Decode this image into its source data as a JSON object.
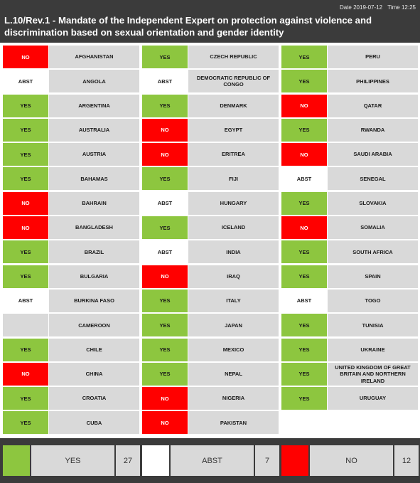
{
  "header": {
    "date_label": "Date 2019-07-12",
    "time_label": "Time 12:25",
    "title": "L.10/Rev.1 - Mandate of the Independent Expert on protection against violence and discrimination based on sexual orientation and gender identity"
  },
  "columns": [
    [
      {
        "vote": "NO",
        "country": "AFGHANISTAN"
      },
      {
        "vote": "ABST",
        "country": "ANGOLA"
      },
      {
        "vote": "YES",
        "country": "ARGENTINA"
      },
      {
        "vote": "YES",
        "country": "AUSTRALIA"
      },
      {
        "vote": "YES",
        "country": "AUSTRIA"
      },
      {
        "vote": "YES",
        "country": "BAHAMAS"
      },
      {
        "vote": "NO",
        "country": "BAHRAIN"
      },
      {
        "vote": "NO",
        "country": "BANGLADESH"
      },
      {
        "vote": "YES",
        "country": "BRAZIL"
      },
      {
        "vote": "YES",
        "country": "BULGARIA"
      },
      {
        "vote": "ABST",
        "country": "BURKINA FASO"
      },
      {
        "vote": "",
        "country": "CAMEROON"
      },
      {
        "vote": "YES",
        "country": "CHILE"
      },
      {
        "vote": "NO",
        "country": "CHINA"
      },
      {
        "vote": "YES",
        "country": "CROATIA"
      },
      {
        "vote": "YES",
        "country": "CUBA"
      }
    ],
    [
      {
        "vote": "YES",
        "country": "CZECH REPUBLIC"
      },
      {
        "vote": "ABST",
        "country": "DEMOCRATIC REPUBLIC OF CONGO"
      },
      {
        "vote": "YES",
        "country": "DENMARK"
      },
      {
        "vote": "NO",
        "country": "EGYPT"
      },
      {
        "vote": "NO",
        "country": "ERITREA"
      },
      {
        "vote": "YES",
        "country": "FIJI"
      },
      {
        "vote": "ABST",
        "country": "HUNGARY"
      },
      {
        "vote": "YES",
        "country": "ICELAND"
      },
      {
        "vote": "ABST",
        "country": "INDIA"
      },
      {
        "vote": "NO",
        "country": "IRAQ"
      },
      {
        "vote": "YES",
        "country": "ITALY"
      },
      {
        "vote": "YES",
        "country": "JAPAN"
      },
      {
        "vote": "YES",
        "country": "MEXICO"
      },
      {
        "vote": "YES",
        "country": "NEPAL"
      },
      {
        "vote": "NO",
        "country": "NIGERIA"
      },
      {
        "vote": "NO",
        "country": "PAKISTAN"
      }
    ],
    [
      {
        "vote": "YES",
        "country": "PERU"
      },
      {
        "vote": "YES",
        "country": "PHILIPPINES"
      },
      {
        "vote": "NO",
        "country": "QATAR"
      },
      {
        "vote": "YES",
        "country": "RWANDA"
      },
      {
        "vote": "NO",
        "country": "SAUDI ARABIA"
      },
      {
        "vote": "ABST",
        "country": "SENEGAL"
      },
      {
        "vote": "YES",
        "country": "SLOVAKIA"
      },
      {
        "vote": "NO",
        "country": "SOMALIA"
      },
      {
        "vote": "YES",
        "country": "SOUTH AFRICA"
      },
      {
        "vote": "YES",
        "country": "SPAIN"
      },
      {
        "vote": "ABST",
        "country": "TOGO"
      },
      {
        "vote": "YES",
        "country": "TUNISIA"
      },
      {
        "vote": "YES",
        "country": "UKRAINE"
      },
      {
        "vote": "YES",
        "country": "UNITED KINGDOM OF GREAT BRITAIN AND NORTHERN IRELAND"
      },
      {
        "vote": "YES",
        "country": "URUGUAY"
      }
    ]
  ],
  "tally": {
    "yes": {
      "label": "YES",
      "count": "27"
    },
    "abst": {
      "label": "ABST",
      "count": "7"
    },
    "no": {
      "label": "NO",
      "count": "12"
    }
  },
  "colors": {
    "yes": "#8dc63f",
    "no": "#ff0000",
    "abst": "#ffffff",
    "header_bg": "#3b3b3b",
    "cell_bg": "#d9d9d9"
  }
}
